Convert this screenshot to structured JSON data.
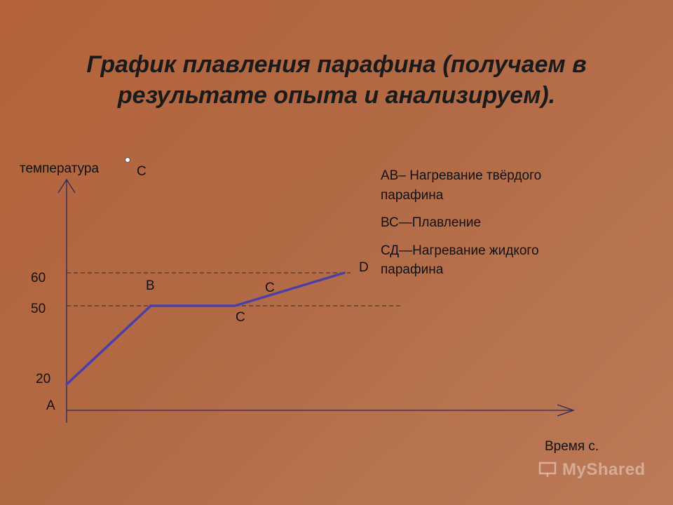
{
  "title": {
    "line1": "График плавления парафина (получаем в",
    "line2": "результате опыта и анализируем)."
  },
  "axes": {
    "y_label": "температура",
    "y_unit": "С",
    "x_label": "Время с."
  },
  "point_labels": {
    "A": "А",
    "B": "В",
    "C1": "С",
    "C2": "С",
    "D": "D"
  },
  "legend": [
    {
      "line1": "АВ– Нагревание твёрдого",
      "line2": "парафина"
    },
    {
      "line1": "ВС—Плавление",
      "line2": ""
    },
    {
      "line1": "СД—Нагревание жидкого",
      "line2": "парафина"
    }
  ],
  "watermark": "MyShared",
  "colors": {
    "background": "#b26a45",
    "curve": "#4a3fa6",
    "axis": "#2a2a55",
    "dashed": "#2a2a2a"
  },
  "chart_data": {
    "type": "line",
    "title": "График плавления парафина (получаем в результате опыта и анализируем).",
    "xlabel": "Время с.",
    "ylabel": "температура",
    "y_ticks": [
      "20",
      "50",
      "60"
    ],
    "series": [
      {
        "points": [
          {
            "label": "А",
            "x": 0,
            "y": 20
          },
          {
            "label": "В",
            "x": 1,
            "y": 50
          },
          {
            "label": "С",
            "x": 2,
            "y": 50
          },
          {
            "label": "D",
            "x": 3.3,
            "y": 60
          }
        ]
      }
    ],
    "reference_lines": [
      50,
      60
    ],
    "ylim": [
      0,
      80
    ],
    "grid": false
  }
}
